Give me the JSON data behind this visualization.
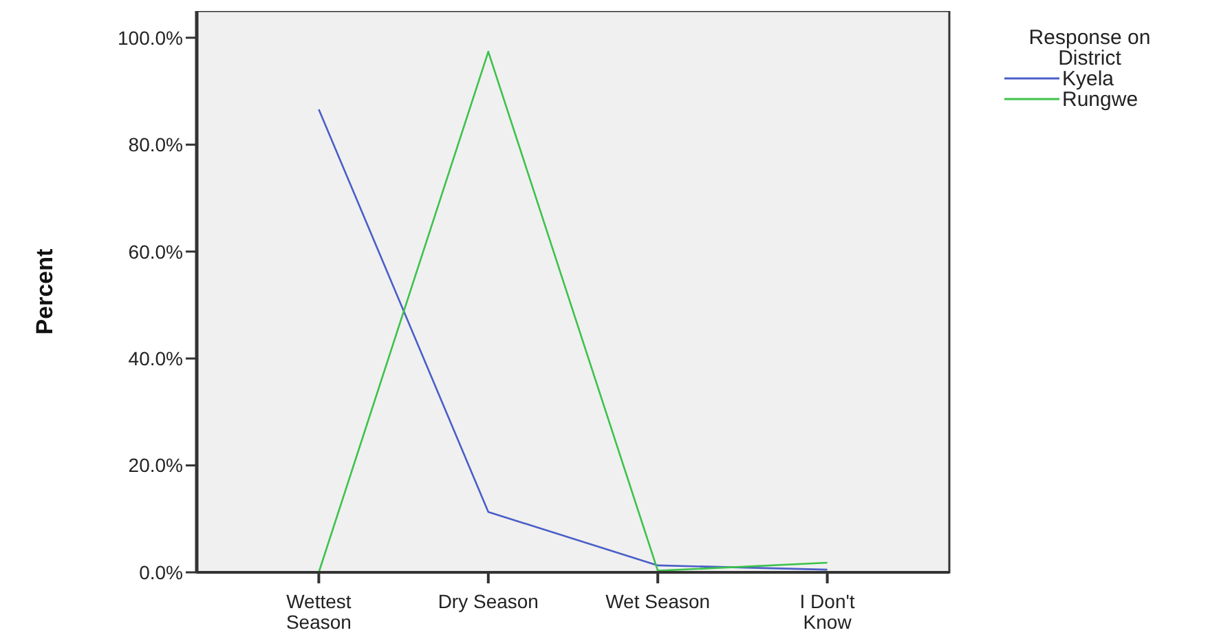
{
  "chart_data": {
    "type": "line",
    "ylabel": "Percent",
    "legend_title": "Response on District",
    "legend": "top right",
    "categories": [
      "Wettest Season",
      "Dry Season",
      "Wet Season",
      "I Don't Know"
    ],
    "series": [
      {
        "name": "Kyela",
        "color": "#4a5ec8",
        "values": [
          86.6,
          11.3,
          1.3,
          0.5
        ]
      },
      {
        "name": "Rungwe",
        "color": "#3cc24a",
        "values": [
          0,
          97.4,
          0.3,
          1.8
        ]
      }
    ],
    "ylim": [
      0,
      105
    ],
    "yticks": [
      {
        "value": 0,
        "label": "0.0%"
      },
      {
        "value": 20,
        "label": "20.0%"
      },
      {
        "value": 40,
        "label": "40.0%"
      },
      {
        "value": 60,
        "label": "60.0%"
      },
      {
        "value": 80,
        "label": "80.0%"
      },
      {
        "value": 100,
        "label": "100.0%"
      }
    ],
    "grid": false,
    "marker": "none",
    "line_style": "solid"
  }
}
